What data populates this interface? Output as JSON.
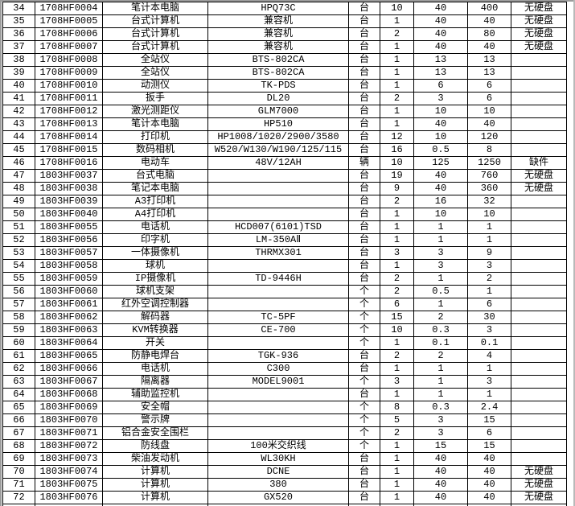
{
  "colors": {
    "background": "#ffffff",
    "grid": "#000000",
    "text": "#000000",
    "edge_gray": "#9c9c9c"
  },
  "table": {
    "columns": [
      {
        "key": "no",
        "name": "row-number"
      },
      {
        "key": "asset_id",
        "name": "asset-id"
      },
      {
        "key": "item_name",
        "name": "item-name"
      },
      {
        "key": "model",
        "name": "model-spec"
      },
      {
        "key": "unit",
        "name": "unit"
      },
      {
        "key": "qty",
        "name": "quantity"
      },
      {
        "key": "unit_price",
        "name": "unit-price"
      },
      {
        "key": "total",
        "name": "total-price"
      },
      {
        "key": "remark",
        "name": "remark"
      }
    ],
    "rows": [
      [
        "34",
        "1708HF0004",
        "笔计本电脑",
        "HPQ73C",
        "台",
        "10",
        "40",
        "400",
        "无硬盘"
      ],
      [
        "35",
        "1708HF0005",
        "台式计算机",
        "兼容机",
        "台",
        "1",
        "40",
        "40",
        "无硬盘"
      ],
      [
        "36",
        "1708HF0006",
        "台式计算机",
        "兼容机",
        "台",
        "2",
        "40",
        "80",
        "无硬盘"
      ],
      [
        "37",
        "1708HF0007",
        "台式计算机",
        "兼容机",
        "台",
        "1",
        "40",
        "40",
        "无硬盘"
      ],
      [
        "38",
        "1708HF0008",
        "全站仪",
        "BTS-802CA",
        "台",
        "1",
        "13",
        "13",
        ""
      ],
      [
        "39",
        "1708HF0009",
        "全站仪",
        "BTS-802CA",
        "台",
        "1",
        "13",
        "13",
        ""
      ],
      [
        "40",
        "1708HF0010",
        "动测仪",
        "TK-PDS",
        "台",
        "1",
        "6",
        "6",
        ""
      ],
      [
        "41",
        "1708HF0011",
        "扳手",
        "DL20",
        "台",
        "2",
        "3",
        "6",
        ""
      ],
      [
        "42",
        "1708HF0012",
        "激光测距仪",
        "GLM7000",
        "台",
        "1",
        "10",
        "10",
        ""
      ],
      [
        "43",
        "1708HF0013",
        "笔计本电脑",
        "HP510",
        "台",
        "1",
        "40",
        "40",
        ""
      ],
      [
        "44",
        "1708HF0014",
        "打印机",
        "HP1008/1020/2900/3580",
        "台",
        "12",
        "10",
        "120",
        ""
      ],
      [
        "45",
        "1708HF0015",
        "数码相机",
        "W520/W130/W190/125/115",
        "台",
        "16",
        "0.5",
        "8",
        ""
      ],
      [
        "46",
        "1708HF0016",
        "电动车",
        "48V/12AH",
        "辆",
        "10",
        "125",
        "1250",
        "缺件"
      ],
      [
        "47",
        "1803HF0037",
        "台式电脑",
        "",
        "台",
        "19",
        "40",
        "760",
        "无硬盘"
      ],
      [
        "48",
        "1803HF0038",
        "笔记本电脑",
        "",
        "台",
        "9",
        "40",
        "360",
        "无硬盘"
      ],
      [
        "49",
        "1803HF0039",
        "A3打印机",
        "",
        "台",
        "2",
        "16",
        "32",
        ""
      ],
      [
        "50",
        "1803HF0040",
        "A4打印机",
        "",
        "台",
        "1",
        "10",
        "10",
        ""
      ],
      [
        "51",
        "1803HF0055",
        "电话机",
        "HCD007(6101)TSD",
        "台",
        "1",
        "1",
        "1",
        ""
      ],
      [
        "52",
        "1803HF0056",
        "印字机",
        "LM-350AⅡ",
        "台",
        "1",
        "1",
        "1",
        ""
      ],
      [
        "53",
        "1803HF0057",
        "一体摄像机",
        "THRMX301",
        "台",
        "3",
        "3",
        "9",
        ""
      ],
      [
        "54",
        "1803HF0058",
        "球机",
        "",
        "台",
        "1",
        "3",
        "3",
        ""
      ],
      [
        "55",
        "1803HF0059",
        "IP摄像机",
        "TD-9446H",
        "台",
        "2",
        "1",
        "2",
        ""
      ],
      [
        "56",
        "1803HF0060",
        "球机支架",
        "",
        "个",
        "2",
        "0.5",
        "1",
        ""
      ],
      [
        "57",
        "1803HF0061",
        "红外空调控制器",
        "",
        "个",
        "6",
        "1",
        "6",
        ""
      ],
      [
        "58",
        "1803HF0062",
        "解码器",
        "TC-5PF",
        "个",
        "15",
        "2",
        "30",
        ""
      ],
      [
        "59",
        "1803HF0063",
        "KVM转换器",
        "CE-700",
        "个",
        "10",
        "0.3",
        "3",
        ""
      ],
      [
        "60",
        "1803HF0064",
        "开关",
        "",
        "个",
        "1",
        "0.1",
        "0.1",
        ""
      ],
      [
        "61",
        "1803HF0065",
        "防静电焊台",
        "TGK-936",
        "台",
        "2",
        "2",
        "4",
        ""
      ],
      [
        "62",
        "1803HF0066",
        "电话机",
        "C300",
        "台",
        "1",
        "1",
        "1",
        ""
      ],
      [
        "63",
        "1803HF0067",
        "隔离器",
        "MODEL9001",
        "个",
        "3",
        "1",
        "3",
        ""
      ],
      [
        "64",
        "1803HF0068",
        "辅助监控机",
        "",
        "台",
        "1",
        "1",
        "1",
        ""
      ],
      [
        "65",
        "1803HF0069",
        "安全帽",
        "",
        "个",
        "8",
        "0.3",
        "2.4",
        ""
      ],
      [
        "66",
        "1803HF0070",
        "警示牌",
        "",
        "个",
        "5",
        "3",
        "15",
        ""
      ],
      [
        "67",
        "1803HF0071",
        "铝合金安全围栏",
        "",
        "个",
        "2",
        "3",
        "6",
        ""
      ],
      [
        "68",
        "1803HF0072",
        "防线盘",
        "100米交织线",
        "个",
        "1",
        "15",
        "15",
        ""
      ],
      [
        "69",
        "1803HF0073",
        "柴油发动机",
        "WL30KH",
        "台",
        "1",
        "40",
        "40",
        ""
      ],
      [
        "70",
        "1803HF0074",
        "计算机",
        "DCNE",
        "台",
        "1",
        "40",
        "40",
        "无硬盘"
      ],
      [
        "71",
        "1803HF0075",
        "计算机",
        "380",
        "台",
        "1",
        "40",
        "40",
        "无硬盘"
      ],
      [
        "72",
        "1803HF0076",
        "计算机",
        "GX520",
        "台",
        "1",
        "40",
        "40",
        "无硬盘"
      ]
    ],
    "partial_bottom_row": true
  }
}
